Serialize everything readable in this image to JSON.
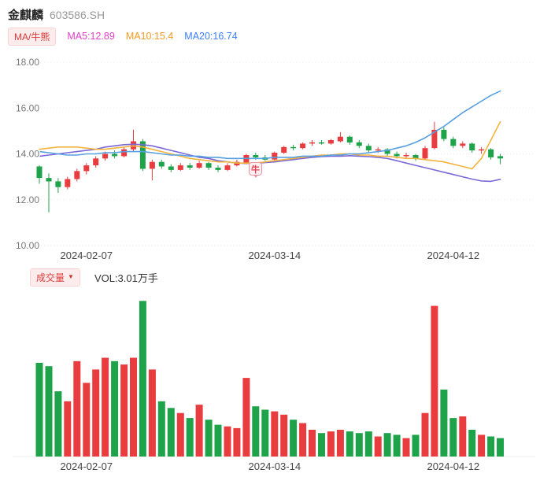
{
  "header": {
    "title": "金麒麟",
    "code": "603586.SH"
  },
  "legend": {
    "ma_badge": "MA/牛熊",
    "items": [
      {
        "label": "MA5:12.89",
        "color": "#E33EC6"
      },
      {
        "label": "MA10:15.4",
        "color": "#F59A23"
      },
      {
        "label": "MA20:16.74",
        "color": "#3D7EFF"
      }
    ]
  },
  "volume_header": {
    "badge": "成交量",
    "dropdown_icon": "▼",
    "value": "VOL:3.01万手"
  },
  "colors": {
    "up": "#E93C3F",
    "down": "#1EA34A",
    "grid": "#E8E8E8",
    "axis_text": "#7A7A7A",
    "date_text": "#444444",
    "badge_bg": "#FDECEC",
    "badge_text": "#DD3B3B"
  },
  "chart_data": {
    "type": "candlestick+volume",
    "title": "金麒麟 603586.SH daily K-line with MA5/MA10/MA20 and volume",
    "ylim": [
      10,
      18
    ],
    "yticks": [
      18,
      16,
      14,
      12,
      10
    ],
    "vol_max": 9.5,
    "xticks": [
      {
        "label": "2024-02-07",
        "index": 5
      },
      {
        "label": "2024-03-14",
        "index": 25
      },
      {
        "label": "2024-04-12",
        "index": 44
      }
    ],
    "annotation": {
      "label": "牛",
      "index": 23,
      "price": 13.38
    },
    "candles": [
      {
        "date": "2024-01-31",
        "o": 13.45,
        "h": 13.5,
        "l": 12.7,
        "c": 12.95,
        "v": 5.6
      },
      {
        "date": "2024-02-01",
        "o": 12.95,
        "h": 13.15,
        "l": 11.45,
        "c": 12.8,
        "v": 5.4
      },
      {
        "date": "2024-02-02",
        "o": 12.8,
        "h": 12.95,
        "l": 12.3,
        "c": 12.55,
        "v": 3.9
      },
      {
        "date": "2024-02-05",
        "o": 12.55,
        "h": 13.0,
        "l": 12.45,
        "c": 12.9,
        "v": 3.3
      },
      {
        "date": "2024-02-06",
        "o": 12.9,
        "h": 13.35,
        "l": 12.8,
        "c": 13.25,
        "v": 5.7
      },
      {
        "date": "2024-02-07",
        "o": 13.25,
        "h": 13.6,
        "l": 13.1,
        "c": 13.5,
        "v": 4.4
      },
      {
        "date": "2024-02-08",
        "o": 13.5,
        "h": 13.9,
        "l": 13.4,
        "c": 13.8,
        "v": 5.2
      },
      {
        "date": "2024-02-19",
        "o": 13.8,
        "h": 14.1,
        "l": 13.7,
        "c": 14.0,
        "v": 5.9
      },
      {
        "date": "2024-02-20",
        "o": 14.0,
        "h": 14.15,
        "l": 13.8,
        "c": 13.9,
        "v": 5.7
      },
      {
        "date": "2024-02-21",
        "o": 13.9,
        "h": 14.3,
        "l": 13.85,
        "c": 14.2,
        "v": 5.5
      },
      {
        "date": "2024-02-22",
        "o": 14.2,
        "h": 15.05,
        "l": 14.1,
        "c": 14.55,
        "v": 5.9
      },
      {
        "date": "2024-02-23",
        "o": 14.55,
        "h": 14.65,
        "l": 13.25,
        "c": 13.35,
        "v": 9.3
      },
      {
        "date": "2024-02-26",
        "o": 13.35,
        "h": 13.75,
        "l": 12.85,
        "c": 13.65,
        "v": 5.2
      },
      {
        "date": "2024-02-27",
        "o": 13.65,
        "h": 13.75,
        "l": 13.35,
        "c": 13.45,
        "v": 3.3
      },
      {
        "date": "2024-02-28",
        "o": 13.45,
        "h": 13.55,
        "l": 13.2,
        "c": 13.3,
        "v": 2.9
      },
      {
        "date": "2024-02-29",
        "o": 13.3,
        "h": 13.6,
        "l": 13.25,
        "c": 13.5,
        "v": 2.6
      },
      {
        "date": "2024-03-01",
        "o": 13.5,
        "h": 13.6,
        "l": 13.3,
        "c": 13.4,
        "v": 2.3
      },
      {
        "date": "2024-03-04",
        "o": 13.4,
        "h": 13.7,
        "l": 13.35,
        "c": 13.6,
        "v": 3.1
      },
      {
        "date": "2024-03-05",
        "o": 13.6,
        "h": 13.65,
        "l": 13.3,
        "c": 13.4,
        "v": 2.2
      },
      {
        "date": "2024-03-06",
        "o": 13.4,
        "h": 13.5,
        "l": 13.2,
        "c": 13.3,
        "v": 1.9
      },
      {
        "date": "2024-03-07",
        "o": 13.3,
        "h": 13.6,
        "l": 13.25,
        "c": 13.5,
        "v": 1.8
      },
      {
        "date": "2024-03-08",
        "o": 13.5,
        "h": 13.75,
        "l": 13.45,
        "c": 13.65,
        "v": 1.7
      },
      {
        "date": "2024-03-11",
        "o": 13.6,
        "h": 14.0,
        "l": 13.55,
        "c": 13.95,
        "v": 4.7
      },
      {
        "date": "2024-03-12",
        "o": 13.95,
        "h": 14.05,
        "l": 13.75,
        "c": 13.85,
        "v": 3.0
      },
      {
        "date": "2024-03-13",
        "o": 13.85,
        "h": 13.95,
        "l": 13.7,
        "c": 13.75,
        "v": 2.8
      },
      {
        "date": "2024-03-14",
        "o": 13.75,
        "h": 14.1,
        "l": 13.7,
        "c": 14.05,
        "v": 2.7
      },
      {
        "date": "2024-03-15",
        "o": 14.05,
        "h": 14.35,
        "l": 14.0,
        "c": 14.3,
        "v": 2.5
      },
      {
        "date": "2024-03-18",
        "o": 14.3,
        "h": 14.4,
        "l": 14.15,
        "c": 14.25,
        "v": 2.2
      },
      {
        "date": "2024-03-19",
        "o": 14.25,
        "h": 14.5,
        "l": 14.2,
        "c": 14.45,
        "v": 2.0
      },
      {
        "date": "2024-03-20",
        "o": 14.45,
        "h": 14.6,
        "l": 14.35,
        "c": 14.5,
        "v": 1.6
      },
      {
        "date": "2024-03-21",
        "o": 14.5,
        "h": 14.6,
        "l": 14.4,
        "c": 14.45,
        "v": 1.4
      },
      {
        "date": "2024-03-22",
        "o": 14.45,
        "h": 14.65,
        "l": 14.4,
        "c": 14.6,
        "v": 1.5
      },
      {
        "date": "2024-03-25",
        "o": 14.55,
        "h": 14.95,
        "l": 14.5,
        "c": 14.75,
        "v": 1.6
      },
      {
        "date": "2024-03-26",
        "o": 14.75,
        "h": 14.8,
        "l": 14.4,
        "c": 14.5,
        "v": 1.5
      },
      {
        "date": "2024-03-27",
        "o": 14.5,
        "h": 14.6,
        "l": 14.25,
        "c": 14.35,
        "v": 1.4
      },
      {
        "date": "2024-03-28",
        "o": 14.35,
        "h": 14.45,
        "l": 14.05,
        "c": 14.15,
        "v": 1.5
      },
      {
        "date": "2024-03-29",
        "o": 14.15,
        "h": 14.3,
        "l": 14.05,
        "c": 14.2,
        "v": 1.2
      },
      {
        "date": "2024-04-01",
        "o": 14.2,
        "h": 14.25,
        "l": 13.9,
        "c": 14.0,
        "v": 1.4
      },
      {
        "date": "2024-04-02",
        "o": 14.0,
        "h": 14.1,
        "l": 13.8,
        "c": 13.9,
        "v": 1.3
      },
      {
        "date": "2024-04-03",
        "o": 13.9,
        "h": 14.05,
        "l": 13.8,
        "c": 13.95,
        "v": 1.1
      },
      {
        "date": "2024-04-08",
        "o": 13.95,
        "h": 14.0,
        "l": 13.7,
        "c": 13.8,
        "v": 1.3
      },
      {
        "date": "2024-04-09",
        "o": 13.8,
        "h": 14.35,
        "l": 13.75,
        "c": 14.25,
        "v": 2.6
      },
      {
        "date": "2024-04-10",
        "o": 14.25,
        "h": 15.4,
        "l": 14.2,
        "c": 15.05,
        "v": 9.0
      },
      {
        "date": "2024-04-11",
        "o": 15.05,
        "h": 15.15,
        "l": 14.55,
        "c": 14.65,
        "v": 4.0
      },
      {
        "date": "2024-04-12",
        "o": 14.65,
        "h": 14.75,
        "l": 14.25,
        "c": 14.35,
        "v": 2.3
      },
      {
        "date": "2024-04-15",
        "o": 14.35,
        "h": 14.55,
        "l": 14.25,
        "c": 14.45,
        "v": 2.4
      },
      {
        "date": "2024-04-16",
        "o": 14.45,
        "h": 14.5,
        "l": 14.05,
        "c": 14.15,
        "v": 1.6
      },
      {
        "date": "2024-04-17",
        "o": 14.15,
        "h": 14.3,
        "l": 14.0,
        "c": 14.2,
        "v": 1.3
      },
      {
        "date": "2024-04-18",
        "o": 14.2,
        "h": 14.25,
        "l": 13.75,
        "c": 13.85,
        "v": 1.2
      },
      {
        "date": "2024-04-19",
        "o": 13.9,
        "h": 14.0,
        "l": 13.55,
        "c": 13.8,
        "v": 1.1
      }
    ],
    "ma_series": [
      {
        "name": "MA5",
        "color": "#7B68D8",
        "values": [
          13.9,
          13.95,
          14.0,
          14.05,
          14.1,
          14.15,
          14.2,
          14.3,
          14.35,
          14.4,
          14.42,
          14.4,
          14.35,
          14.25,
          14.15,
          14.05,
          13.95,
          13.85,
          13.8,
          13.7,
          13.65,
          13.6,
          13.58,
          13.6,
          13.62,
          13.65,
          13.7,
          13.75,
          13.8,
          13.85,
          13.88,
          13.9,
          13.9,
          13.92,
          13.9,
          13.88,
          13.85,
          13.8,
          13.7,
          13.6,
          13.5,
          13.4,
          13.3,
          13.2,
          13.1,
          13.0,
          12.9,
          12.82,
          12.8,
          12.89
        ]
      },
      {
        "name": "MA10",
        "color": "#F2B33D",
        "values": [
          14.2,
          14.25,
          14.3,
          14.3,
          14.3,
          14.25,
          14.2,
          14.2,
          14.25,
          14.3,
          14.35,
          14.3,
          14.2,
          14.1,
          14.0,
          13.9,
          13.8,
          13.75,
          13.7,
          13.65,
          13.65,
          13.6,
          13.6,
          13.6,
          13.65,
          13.7,
          13.75,
          13.8,
          13.85,
          13.9,
          13.95,
          13.95,
          14.0,
          14.0,
          13.95,
          13.95,
          13.9,
          13.9,
          13.85,
          13.8,
          13.8,
          13.75,
          13.7,
          13.65,
          13.55,
          13.45,
          13.35,
          13.8,
          14.6,
          15.4
        ]
      },
      {
        "name": "MA20",
        "color": "#569FE0",
        "values": [
          14.1,
          14.05,
          14.0,
          13.95,
          13.95,
          14.0,
          14.0,
          14.05,
          14.05,
          14.1,
          14.1,
          14.1,
          14.05,
          14.0,
          13.95,
          13.95,
          13.9,
          13.9,
          13.85,
          13.85,
          13.8,
          13.8,
          13.8,
          13.8,
          13.8,
          13.85,
          13.85,
          13.85,
          13.9,
          13.9,
          13.9,
          13.95,
          13.95,
          14.0,
          14.0,
          14.05,
          14.1,
          14.15,
          14.25,
          14.35,
          14.5,
          14.7,
          14.95,
          15.2,
          15.5,
          15.8,
          16.05,
          16.3,
          16.55,
          16.74
        ]
      }
    ]
  }
}
